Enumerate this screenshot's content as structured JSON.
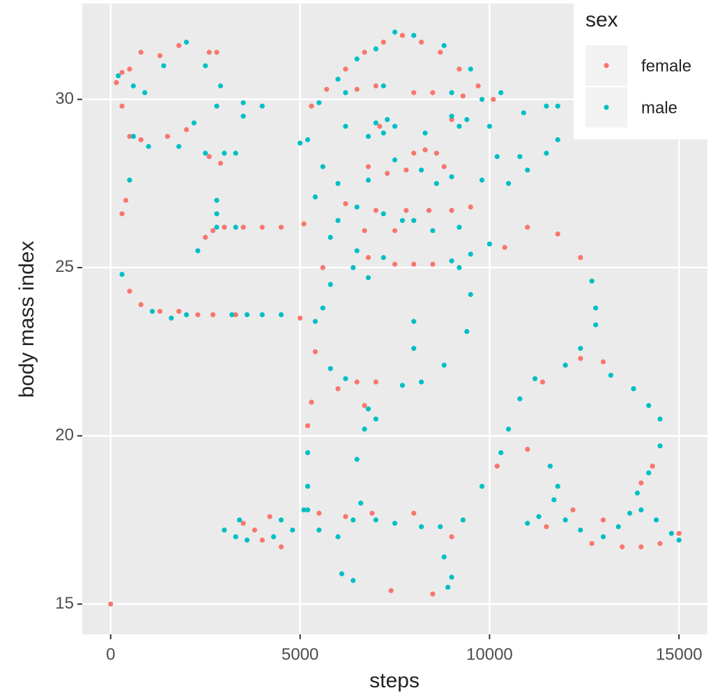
{
  "chart_data": {
    "type": "scatter",
    "x_label": "steps",
    "y_label": "body mass index",
    "legend_title": "sex",
    "legend": "top-right",
    "grid": true,
    "xlim": [
      -750,
      15750
    ],
    "ylim": [
      14.1,
      32.85
    ],
    "xticks": [
      0,
      5000,
      10000,
      15000
    ],
    "yticks": [
      15,
      20,
      25,
      30
    ],
    "series": [
      {
        "name": "female",
        "color": "#F8766D",
        "x": [
          5300,
          5700,
          6200,
          6700,
          7200,
          7700,
          8200,
          8700,
          9200,
          9700,
          10100,
          6500,
          7000,
          8000,
          8500,
          9300,
          7100,
          9000,
          8000,
          8300,
          8600,
          6800,
          7300,
          7800,
          8800,
          6200,
          7000,
          7800,
          8400,
          9000,
          9500,
          6700,
          7500,
          7500,
          8000,
          8500,
          6800,
          300,
          500,
          800,
          1300,
          1800,
          2600,
          2800,
          150,
          300,
          500,
          800,
          1500,
          2000,
          2600,
          2900,
          300,
          400,
          2500,
          2700,
          3000,
          3500,
          4000,
          4500,
          5100,
          500,
          800,
          1300,
          1800,
          2300,
          2700,
          3300,
          5000,
          5600,
          5400,
          6000,
          6500,
          7000,
          5200,
          5300,
          6700,
          10400,
          11000,
          11800,
          12400,
          12400,
          13000,
          11400,
          12000,
          5500,
          6200,
          6900,
          8000,
          9000,
          3500,
          4000,
          4500,
          4200,
          3800,
          11500,
          12200,
          13000,
          13500,
          14000,
          14500,
          15000,
          12700,
          10200,
          11000,
          14300,
          14000,
          0,
          7400,
          8500
        ],
        "values": [
          29.8,
          30.3,
          30.9,
          31.4,
          31.7,
          31.9,
          31.7,
          31.4,
          30.9,
          30.4,
          30.0,
          30.3,
          30.4,
          30.2,
          30.2,
          30.1,
          29.2,
          29.4,
          28.4,
          28.5,
          28.4,
          28.0,
          27.8,
          27.9,
          28.0,
          26.9,
          26.7,
          26.7,
          26.7,
          26.7,
          26.8,
          26.1,
          26.1,
          25.1,
          25.1,
          25.1,
          25.3,
          30.8,
          30.9,
          31.4,
          31.3,
          31.6,
          31.4,
          31.4,
          30.5,
          29.8,
          28.9,
          28.8,
          28.9,
          29.1,
          28.3,
          28.1,
          26.6,
          27.0,
          25.9,
          26.1,
          26.2,
          26.2,
          26.2,
          26.2,
          26.3,
          24.3,
          23.9,
          23.7,
          23.7,
          23.6,
          23.6,
          23.6,
          23.5,
          25.0,
          22.5,
          21.4,
          21.6,
          21.6,
          20.3,
          21.0,
          20.9,
          25.6,
          26.2,
          26.0,
          25.3,
          22.3,
          22.2,
          21.6,
          22.1,
          17.7,
          17.6,
          17.7,
          17.7,
          17.0,
          17.4,
          16.9,
          16.7,
          17.6,
          17.2,
          17.3,
          17.8,
          17.5,
          16.7,
          16.7,
          16.8,
          17.1,
          16.8,
          19.1,
          19.6,
          19.1,
          18.6,
          15,
          15.4,
          15.3
        ]
      },
      {
        "name": "male",
        "color": "#00BFC4",
        "x": [
          5500,
          6000,
          6500,
          7000,
          7500,
          8000,
          8800,
          9500,
          10300,
          10900,
          11500,
          11800,
          6200,
          7200,
          9000,
          9800,
          7000,
          7200,
          7300,
          7500,
          9000,
          9200,
          9400,
          6200,
          6800,
          8300,
          10000,
          5200,
          5600,
          6000,
          9800,
          10200,
          10800,
          6800,
          7500,
          8200,
          9000,
          8600,
          6500,
          7200,
          8000,
          9200,
          8500,
          7700,
          6000,
          5800,
          6500,
          7200,
          9000,
          9500,
          10000,
          10500,
          11000,
          11500,
          11800,
          5400,
          5000,
          200,
          600,
          900,
          1400,
          2000,
          2500,
          2900,
          2200,
          2800,
          3500,
          4000,
          600,
          1000,
          1800,
          2500,
          3000,
          3300,
          3500,
          2800,
          2800,
          500,
          2300,
          2800,
          3300,
          300,
          1100,
          1600,
          2000,
          3600,
          4000,
          4500,
          5400,
          3200,
          5600,
          5800,
          6400,
          6800,
          9200,
          9500,
          9400,
          8800,
          8200,
          7700,
          5800,
          6200,
          8000,
          8000,
          7000,
          6800,
          5200,
          5200,
          5200,
          6500,
          6600,
          6700,
          9300,
          9800,
          10300,
          10500,
          10800,
          11200,
          12000,
          12400,
          13200,
          13800,
          14200,
          14500,
          14500,
          12800,
          12700,
          12800,
          11600,
          11800,
          13900,
          14200,
          3000,
          3300,
          3600,
          4300,
          4800,
          3400,
          4500,
          5100,
          5500,
          6000,
          6400,
          7000,
          7500,
          8200,
          8700,
          11000,
          11300,
          11700,
          12000,
          12400,
          13000,
          13400,
          14000,
          14400,
          14800,
          15000,
          13700,
          6100,
          6400,
          8800,
          9000,
          8900
        ],
        "values": [
          29.9,
          30.6,
          31.2,
          31.5,
          32.0,
          31.9,
          31.6,
          30.9,
          30.2,
          29.6,
          29.8,
          29.8,
          30.2,
          30.4,
          30.2,
          30.0,
          29.3,
          29.0,
          29.4,
          29.2,
          29.5,
          29.2,
          29.4,
          29.2,
          28.9,
          29.0,
          29.2,
          28.8,
          28.0,
          27.5,
          27.6,
          28.3,
          28.3,
          27.6,
          28.2,
          27.9,
          27.7,
          27.5,
          26.8,
          26.6,
          26.4,
          26.2,
          26.1,
          26.4,
          26.4,
          25.9,
          25.5,
          25.3,
          25.2,
          25.4,
          25.7,
          27.5,
          27.9,
          28.4,
          28.8,
          27.1,
          28.7,
          30.7,
          30.4,
          30.2,
          31.0,
          31.7,
          31.0,
          30.4,
          29.3,
          29.8,
          29.9,
          29.8,
          28.9,
          28.6,
          28.6,
          28.4,
          28.4,
          28.4,
          29.5,
          27.0,
          26.6,
          27.6,
          25.5,
          26.2,
          26.2,
          24.8,
          23.7,
          23.5,
          23.6,
          23.6,
          23.6,
          23.6,
          23.4,
          23.6,
          23.8,
          24.5,
          25.0,
          24.7,
          25.0,
          24.2,
          23.1,
          22.1,
          21.6,
          21.5,
          22.0,
          21.7,
          22.6,
          23.4,
          20.5,
          20.8,
          19.5,
          18.5,
          17.8,
          19.3,
          18.0,
          20.2,
          17.5,
          18.5,
          19.5,
          20.2,
          21.1,
          21.7,
          22.1,
          22.6,
          21.8,
          21.4,
          20.9,
          20.5,
          19.7,
          23.3,
          24.6,
          23.8,
          19.1,
          18.5,
          18.3,
          18.9,
          17.2,
          17.0,
          16.9,
          17.0,
          17.2,
          17.5,
          17.5,
          17.8,
          17.2,
          17.0,
          17.5,
          17.5,
          17.4,
          17.3,
          17.3,
          17.4,
          17.6,
          18.1,
          17.5,
          17.2,
          17.0,
          17.3,
          17.8,
          17.5,
          17.1,
          16.9,
          17.7,
          15.9,
          15.7,
          16.4,
          15.8,
          15.5
        ]
      }
    ]
  }
}
